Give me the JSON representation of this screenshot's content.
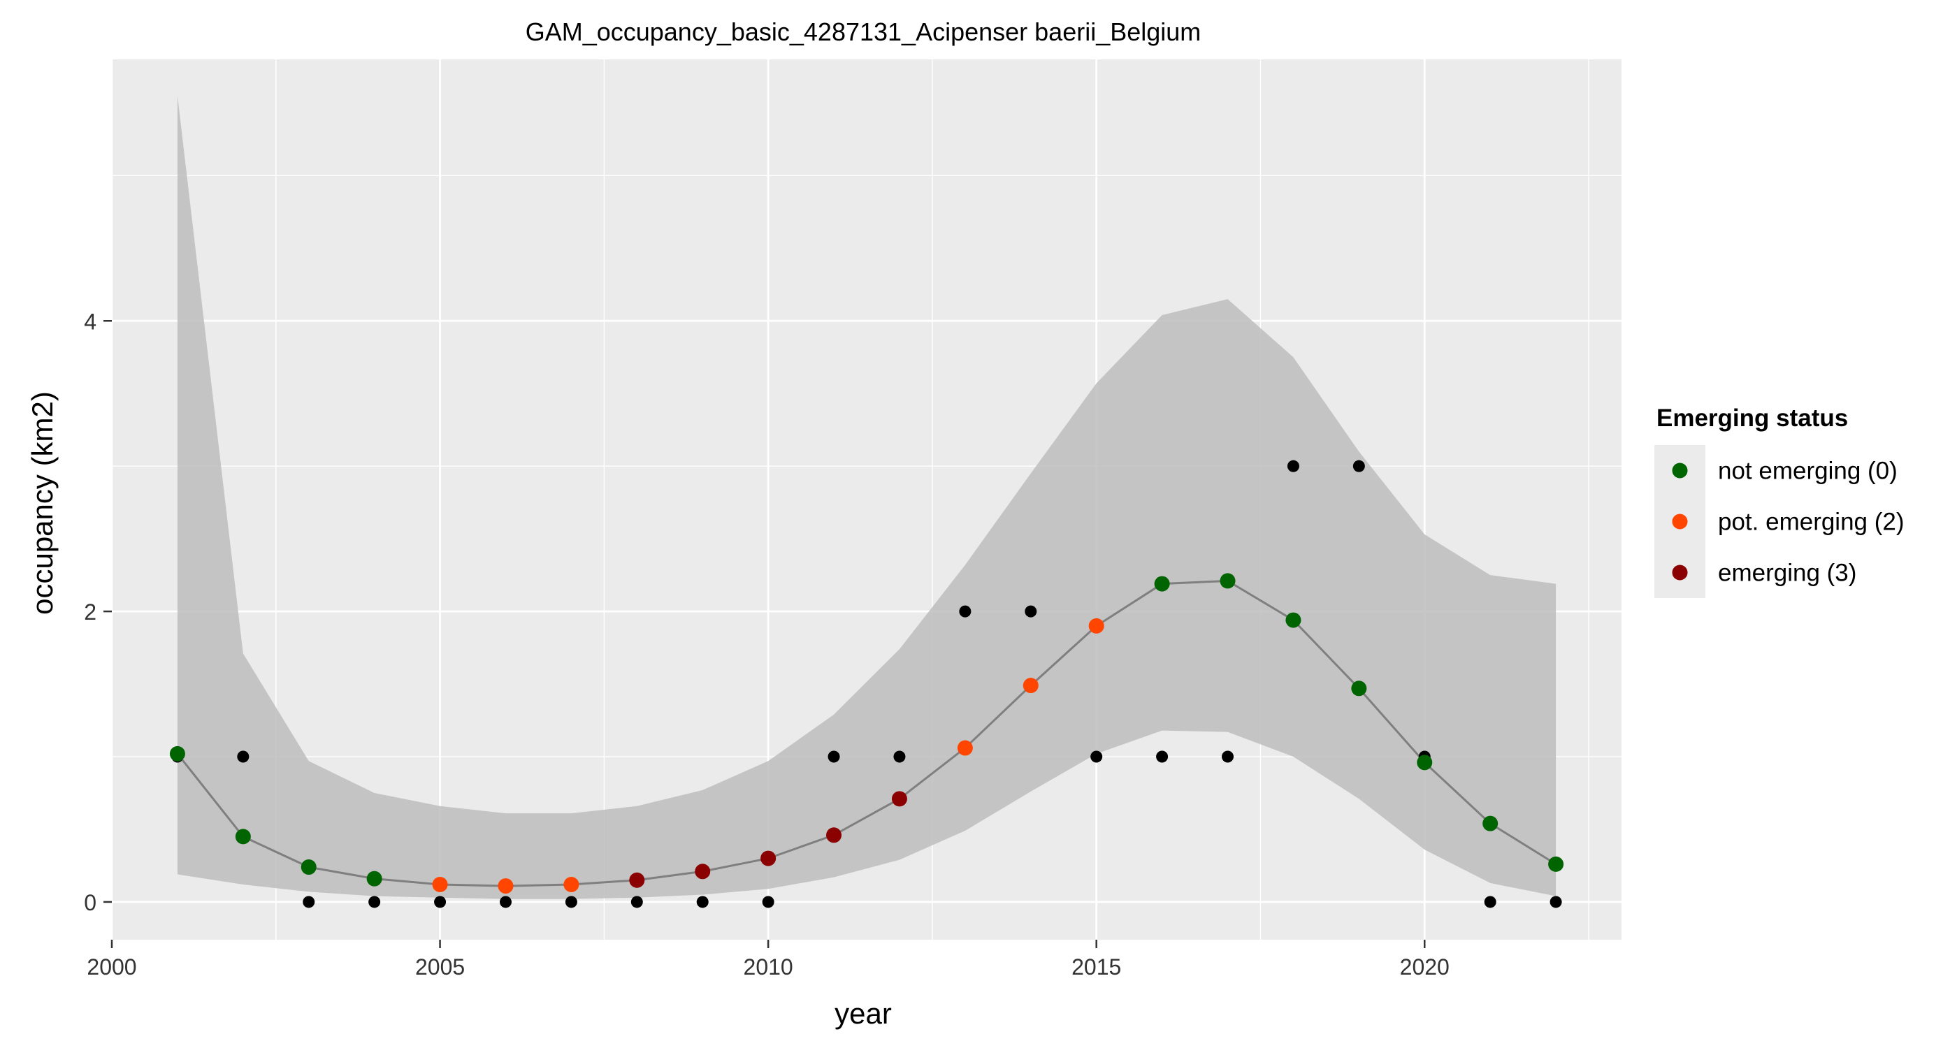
{
  "chart_data": {
    "type": "line",
    "title": "GAM_occupancy_basic_4287131_Acipenser baerii_Belgium",
    "xlabel": "year",
    "ylabel": "occupancy (km2)",
    "xlim": [
      2000,
      2023
    ],
    "ylim": [
      -0.26,
      5.8
    ],
    "x_ticks": [
      2000,
      2005,
      2010,
      2015,
      2020
    ],
    "y_ticks": [
      0,
      2,
      4
    ],
    "grid": true,
    "legend": {
      "title": "Emerging status",
      "position": "right",
      "items": [
        {
          "label": "not emerging (0)",
          "color": "#006400"
        },
        {
          "label": "pot. emerging (2)",
          "color": "#FF4500"
        },
        {
          "label": "emerging (3)",
          "color": "#8B0000"
        }
      ]
    },
    "colors": {
      "panel": "#EBEBEB",
      "grid": "#FFFFFF",
      "ribbon": "#BDBDBD",
      "line": "#7F7F7F",
      "observed": "#000000",
      "not_emerging": "#006400",
      "pot_emerging": "#FF4500",
      "emerging": "#8B0000"
    },
    "years": [
      2001,
      2002,
      2003,
      2004,
      2005,
      2006,
      2007,
      2008,
      2009,
      2010,
      2011,
      2012,
      2013,
      2014,
      2015,
      2016,
      2017,
      2018,
      2019,
      2020,
      2021,
      2022
    ],
    "observed": [
      1,
      1,
      0,
      0,
      0,
      0,
      0,
      0,
      0,
      0,
      1,
      1,
      2,
      2,
      1,
      1,
      1,
      3,
      3,
      1,
      0,
      0
    ],
    "fit": [
      1.02,
      0.45,
      0.24,
      0.16,
      0.12,
      0.11,
      0.12,
      0.15,
      0.21,
      0.3,
      0.46,
      0.71,
      1.06,
      1.49,
      1.9,
      2.19,
      2.21,
      1.94,
      1.47,
      0.96,
      0.54,
      0.26
    ],
    "lower": [
      0.19,
      0.12,
      0.07,
      0.04,
      0.03,
      0.02,
      0.02,
      0.03,
      0.05,
      0.09,
      0.17,
      0.29,
      0.49,
      0.76,
      1.02,
      1.18,
      1.17,
      1.0,
      0.71,
      0.36,
      0.13,
      0.04
    ],
    "upper": [
      5.55,
      1.71,
      0.97,
      0.75,
      0.66,
      0.61,
      0.61,
      0.66,
      0.77,
      0.97,
      1.29,
      1.74,
      2.32,
      2.95,
      3.57,
      4.04,
      4.15,
      3.75,
      3.1,
      2.53,
      2.25,
      2.19
    ],
    "status": [
      0,
      0,
      0,
      0,
      2,
      2,
      2,
      3,
      3,
      3,
      3,
      3,
      2,
      2,
      2,
      0,
      0,
      0,
      0,
      0,
      0,
      0
    ]
  }
}
